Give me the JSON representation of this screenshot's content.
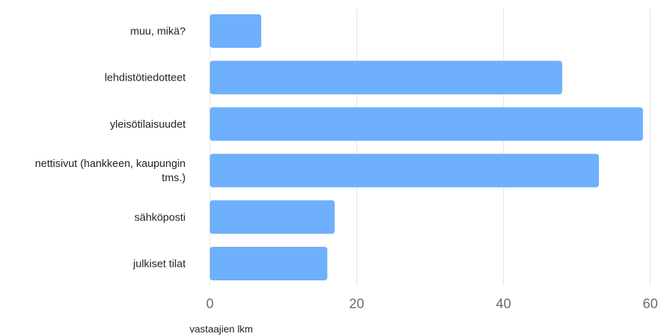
{
  "chart_data": {
    "type": "bar",
    "orientation": "horizontal",
    "categories": [
      "muu, mikä?",
      "lehdistötiedotteet",
      "yleisötilaisuudet",
      "nettisivut (hankkeen, kaupungin tms.)",
      "sähköposti",
      "julkiset tilat"
    ],
    "category_lines": [
      [
        "muu, mikä?"
      ],
      [
        "lehdistötiedotteet"
      ],
      [
        "yleisötilaisuudet"
      ],
      [
        "nettisivut (hankkeen, kaupungin",
        "tms.)"
      ],
      [
        "sähköposti"
      ],
      [
        "julkiset tilat"
      ]
    ],
    "values": [
      7,
      48,
      59,
      53,
      17,
      16
    ],
    "xlabel": "vastaajien lkm",
    "xlim": [
      0,
      60
    ],
    "xticks": [
      0,
      20,
      40,
      60
    ],
    "grid": true,
    "bar_color": "#6eb0fc",
    "grid_color": "#e6e6e6"
  }
}
